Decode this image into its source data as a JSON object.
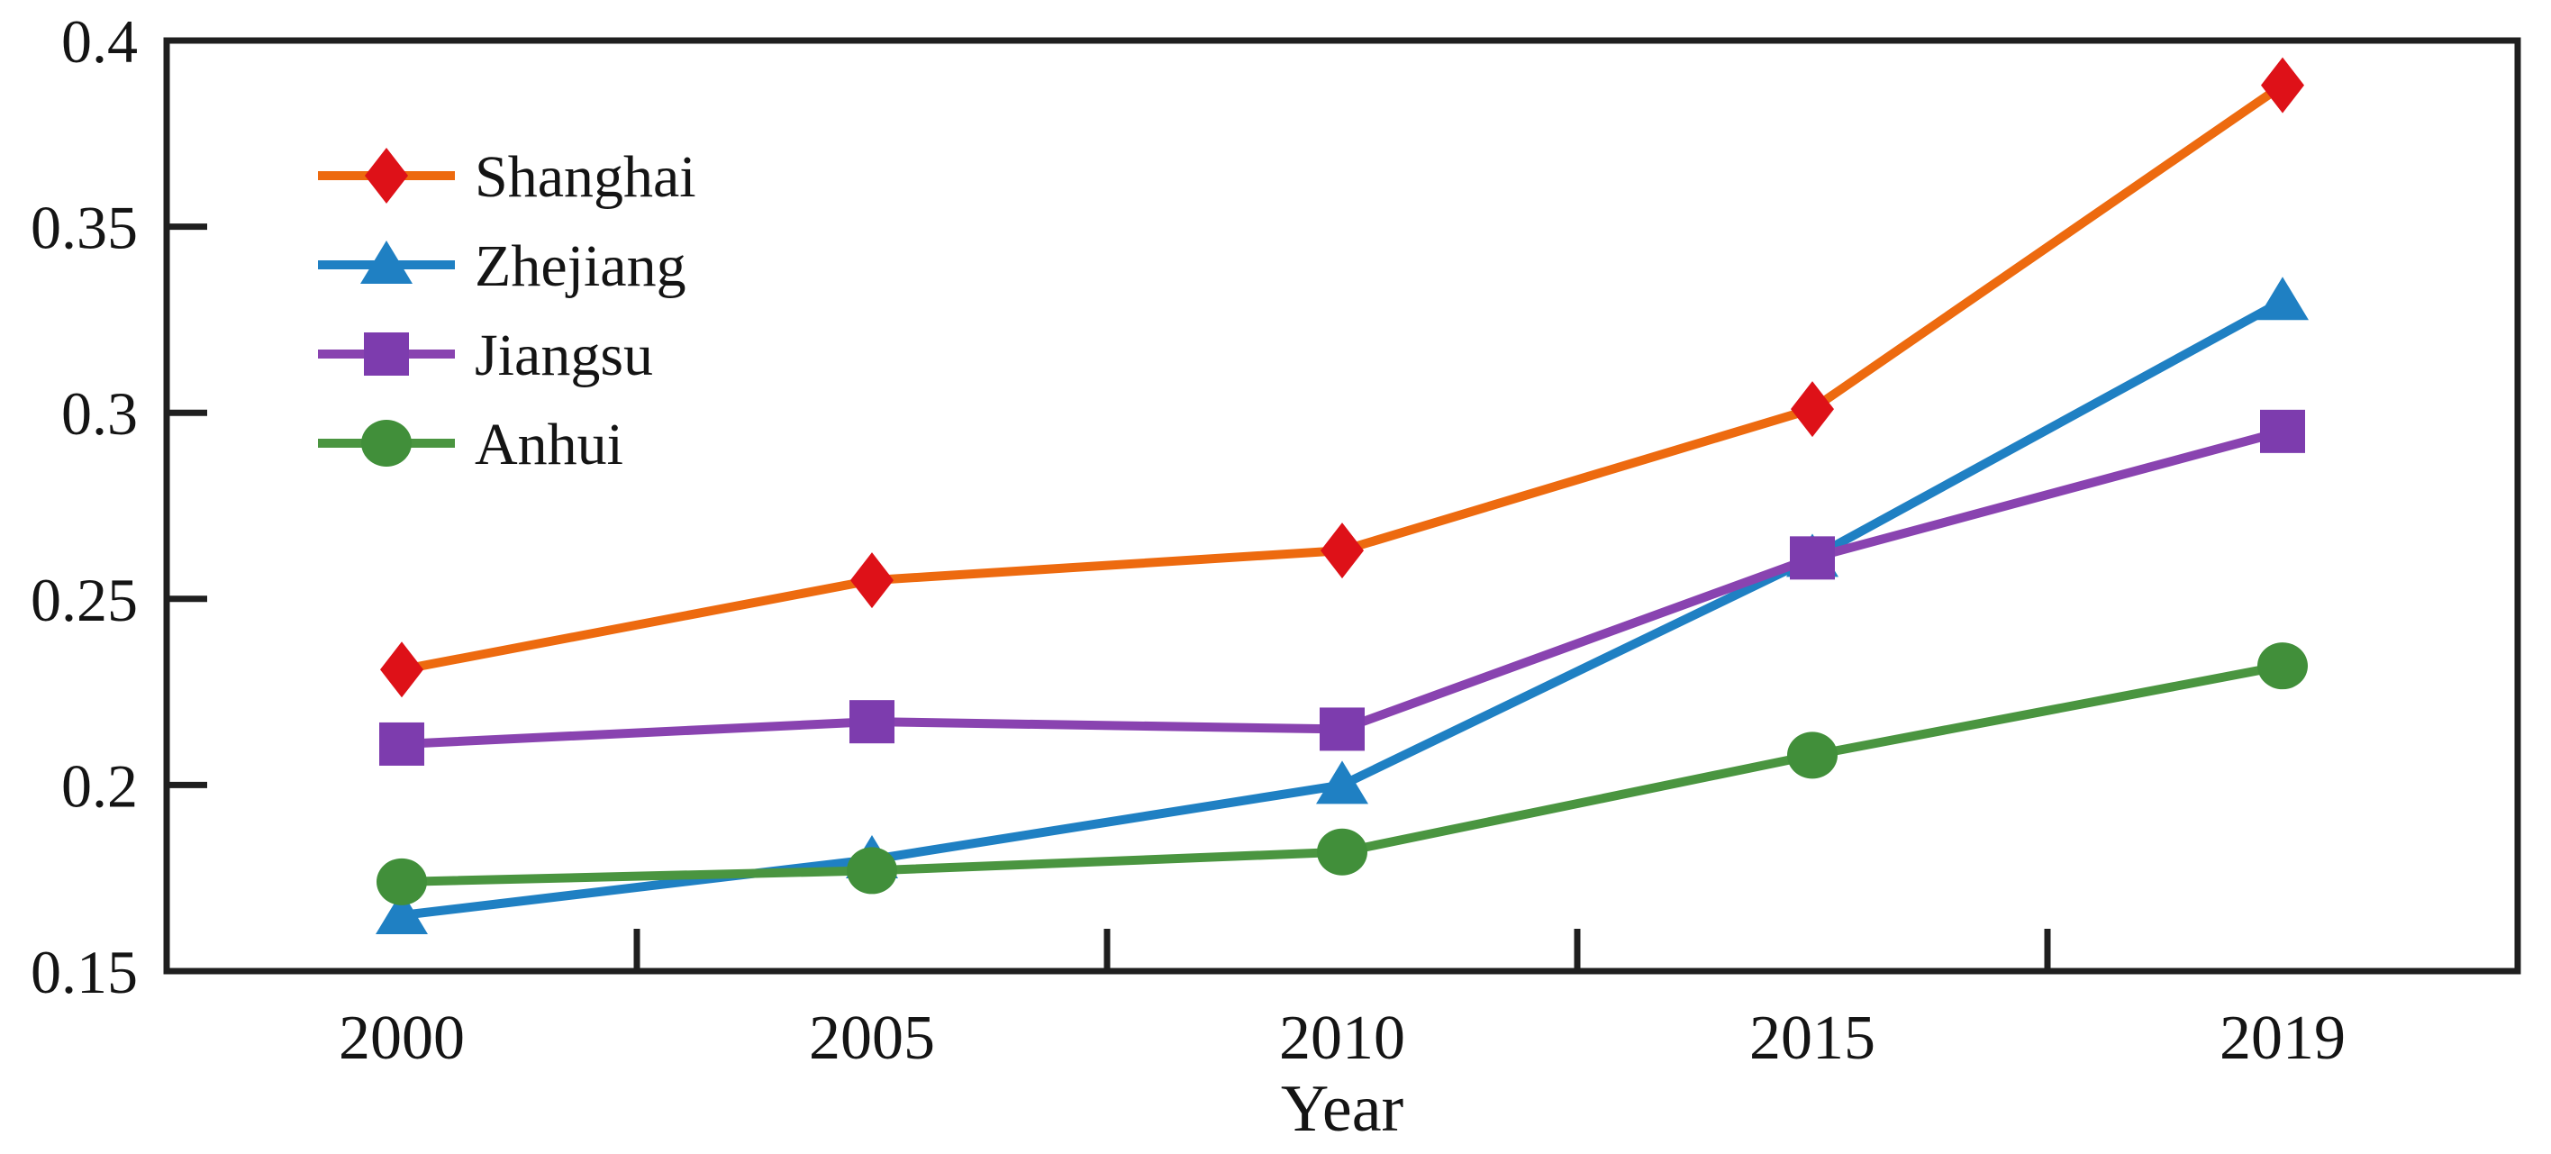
{
  "figure": {
    "background": "#ffffff"
  },
  "chart_data": {
    "type": "line",
    "title": "",
    "xlabel": "Year",
    "ylabel": "",
    "categories": [
      "2000",
      "2005",
      "2010",
      "2015",
      "2019"
    ],
    "y_axis": {
      "min": 0.15,
      "max": 0.4,
      "tick_step": 0.05,
      "tick_labels": [
        "0.4",
        "0.35",
        "0.3",
        "0.25",
        "0.2",
        "0.15"
      ],
      "ticks_inward": true
    },
    "x_axis": {
      "label": "Year",
      "ticks_between_categories": true
    },
    "grid": false,
    "legend": {
      "position": "upper-left",
      "entries": [
        "Shanghai",
        "Zhejiang",
        "Jiangsu",
        "Anhui"
      ]
    },
    "series": [
      {
        "name": "Shanghai",
        "marker": "diamond",
        "line_color": "#ED6A0F",
        "marker_color": "#DE1118",
        "values": [
          0.231,
          0.255,
          0.263,
          0.301,
          0.388
        ]
      },
      {
        "name": "Zhejiang",
        "marker": "triangle",
        "line_color": "#1F80C3",
        "marker_color": "#1F80C3",
        "values": [
          0.165,
          0.18,
          0.2,
          0.261,
          0.33
        ]
      },
      {
        "name": "Jiangsu",
        "marker": "square",
        "line_color": "#8943B0",
        "marker_color": "#7D3CAE",
        "values": [
          0.211,
          0.217,
          0.215,
          0.261,
          0.295
        ]
      },
      {
        "name": "Anhui",
        "marker": "circle",
        "line_color": "#4A9540",
        "marker_color": "#418F3A",
        "values": [
          0.174,
          0.177,
          0.182,
          0.208,
          0.232
        ]
      }
    ],
    "axis_color": "#1F1F1F",
    "text_color": "#141414"
  }
}
